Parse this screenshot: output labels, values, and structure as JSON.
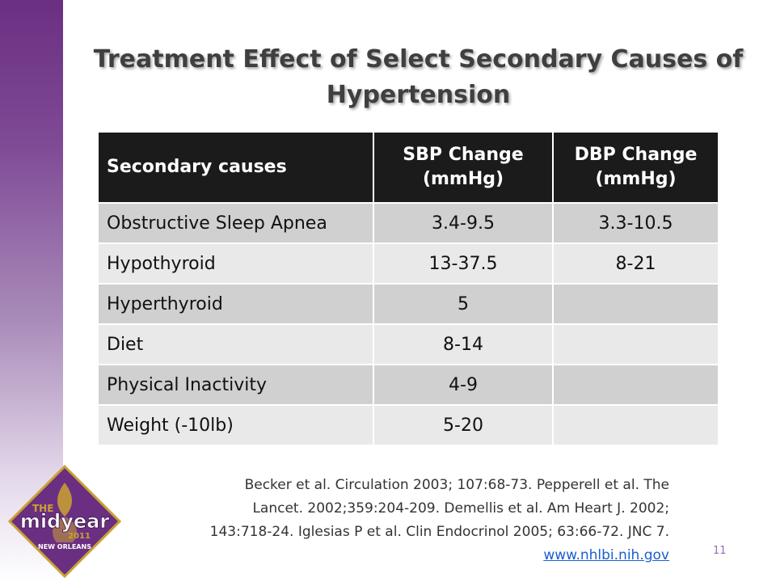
{
  "slide": {
    "title": "Treatment Effect of Select Secondary Causes of Hypertension",
    "page_number": "11"
  },
  "table": {
    "headers": [
      "Secondary causes",
      "SBP Change (mmHg)",
      "DBP Change (mmHg)"
    ],
    "rows": [
      [
        "Obstructive Sleep Apnea",
        "3.4-9.5",
        "3.3-10.5"
      ],
      [
        "Hypothyroid",
        "13-37.5",
        "8-21"
      ],
      [
        "Hyperthyroid",
        "5",
        ""
      ],
      [
        "Diet",
        "8-14",
        ""
      ],
      [
        "Physical Inactivity",
        "4-9",
        ""
      ],
      [
        "Weight (-10lb)",
        "5-20",
        ""
      ]
    ]
  },
  "logo": {
    "line1": "THE",
    "line2": "midyear",
    "line3": "2011",
    "line4": "NEW ORLEANS"
  },
  "references": {
    "text": "Becker et al. Circulation 2003; 107:68-73.  Pepperell et al. The Lancet. 2002;359:204-209.  Demellis et al. Am Heart J. 2002; 143:718-24.  Iglesias P et al. Clin Endocrinol 2005; 63:66-72.   JNC 7. ",
    "link": "www.nhlbi.nih.gov"
  },
  "colors": {
    "sidebar_top": "#6b2f82",
    "header_bg": "#1b1b1b",
    "row_dark": "#d0d0d0",
    "row_light": "#e9e9e9",
    "link": "#1a5fd0",
    "logo_purple": "#6b2f82",
    "logo_gold": "#c9a233"
  }
}
